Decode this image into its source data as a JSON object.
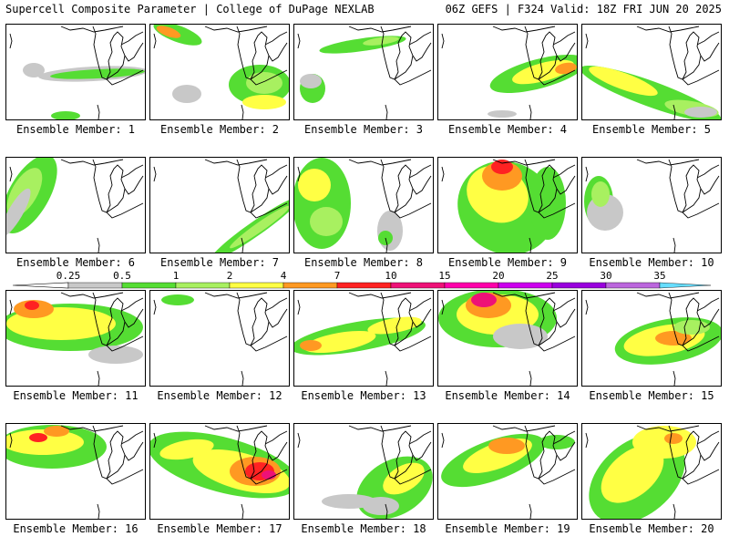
{
  "header": {
    "title_left": "Supercell Composite Parameter | College of DuPage NEXLAB",
    "title_right": "06Z GEFS | F324 Valid: 18Z FRI JUN 20 2025"
  },
  "colorbar": {
    "labels": [
      "0.25",
      "0.5",
      "1",
      "2",
      "4",
      "7",
      "10",
      "15",
      "20",
      "25",
      "30",
      "35"
    ],
    "colors": [
      "#c8c8c8",
      "#55dd33",
      "#a8f060",
      "#ffff44",
      "#ff9922",
      "#ff2222",
      "#ee1177",
      "#ff00aa",
      "#cc00ee",
      "#9900dd",
      "#bb66dd",
      "#66ddff"
    ]
  },
  "panels": [
    {
      "label": "Ensemble Member: 1"
    },
    {
      "label": "Ensemble Member: 2"
    },
    {
      "label": "Ensemble Member: 3"
    },
    {
      "label": "Ensemble Member: 4"
    },
    {
      "label": "Ensemble Member: 5"
    },
    {
      "label": "Ensemble Member: 6"
    },
    {
      "label": "Ensemble Member: 7"
    },
    {
      "label": "Ensemble Member: 8"
    },
    {
      "label": "Ensemble Member: 9"
    },
    {
      "label": "Ensemble Member: 10"
    },
    {
      "label": "Ensemble Member: 11"
    },
    {
      "label": "Ensemble Member: 12"
    },
    {
      "label": "Ensemble Member: 13"
    },
    {
      "label": "Ensemble Member: 14"
    },
    {
      "label": "Ensemble Member: 15"
    },
    {
      "label": "Ensemble Member: 16"
    },
    {
      "label": "Ensemble Member: 17"
    },
    {
      "label": "Ensemble Member: 18"
    },
    {
      "label": "Ensemble Member: 19"
    },
    {
      "label": "Ensemble Member: 20"
    }
  ]
}
